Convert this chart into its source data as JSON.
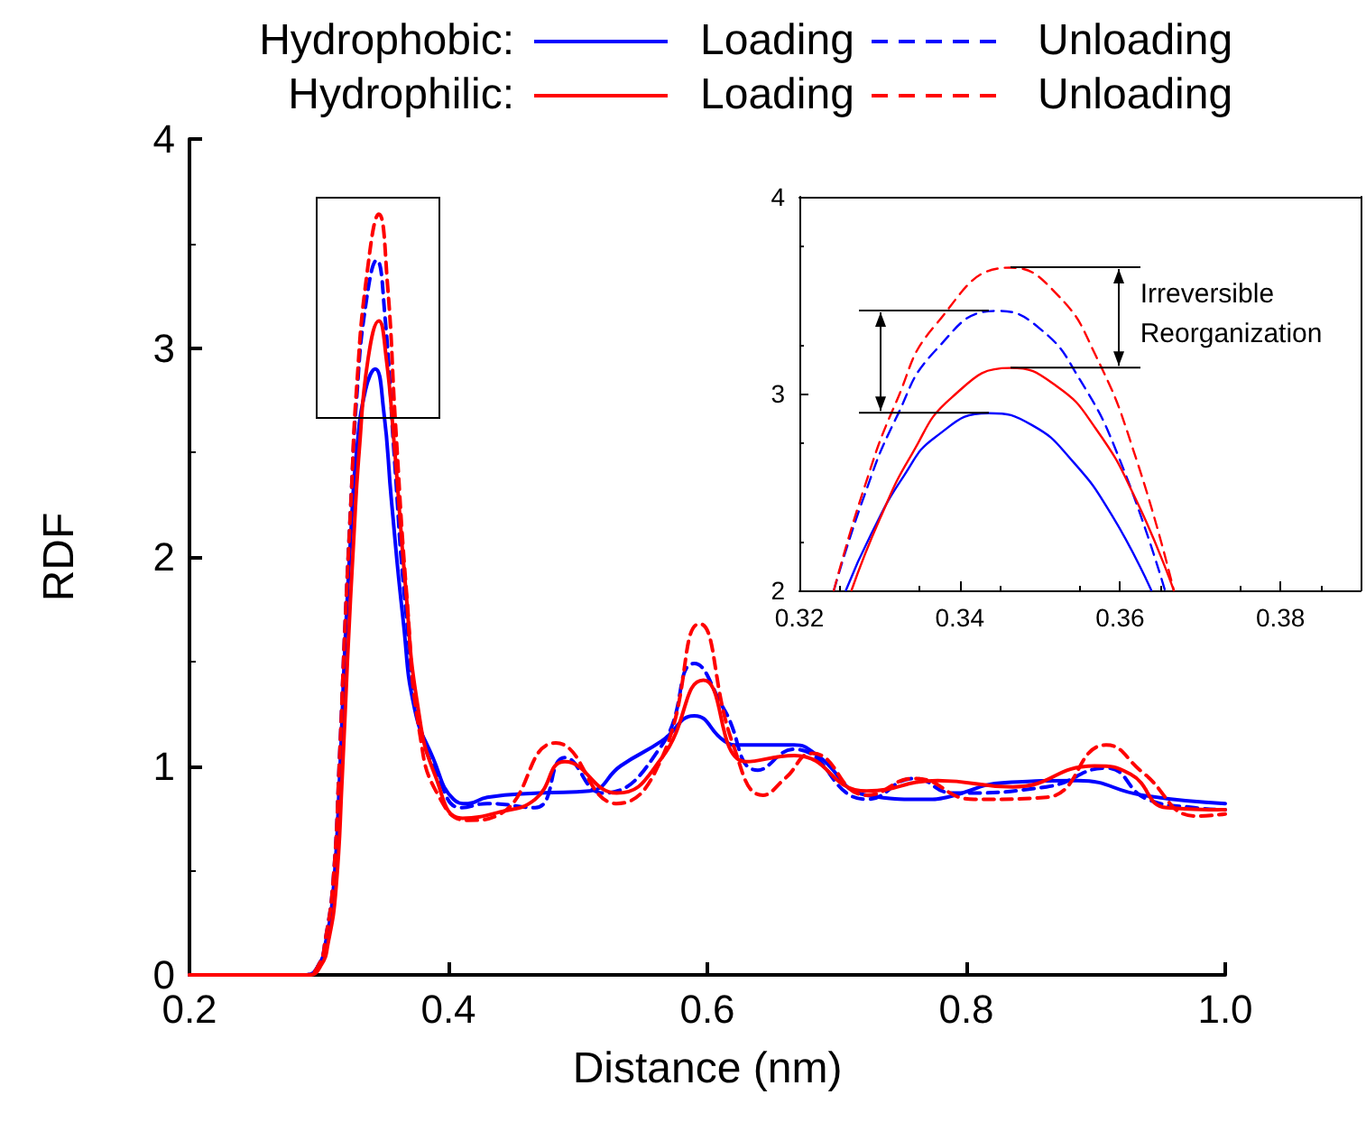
{
  "chart_data": [
    {
      "type": "line",
      "xlabel": "Distance (nm)",
      "ylabel": "RDF",
      "annotations": [
        "Hydrophobic:",
        "Hydrophilic:"
      ],
      "xlim": [
        0.2,
        1.0
      ],
      "xticks": [
        0.2,
        0.4,
        0.6,
        0.8,
        {
          "value": 1.0,
          "label": "1.0"
        }
      ],
      "ylim": [
        0,
        4
      ],
      "yticks": [
        0,
        1,
        2,
        3,
        4
      ],
      "grid": false,
      "legend": "top",
      "marker": "none",
      "series": [
        {
          "name": "Loading",
          "color": "#0000ff",
          "line_style": "solid",
          "x": [
            0.2,
            0.29,
            0.3,
            0.305,
            0.311,
            0.316,
            0.32,
            0.325,
            0.329,
            0.336,
            0.3435,
            0.35,
            0.356,
            0.365,
            0.374,
            0.388,
            0.404,
            0.415,
            0.43,
            0.47,
            0.509,
            0.533,
            0.565,
            0.59,
            0.613,
            0.624,
            0.667,
            0.685,
            0.723,
            0.769,
            0.785,
            0.83,
            0.886,
            0.936,
            1.0
          ],
          "values": [
            0,
            0,
            0.05,
            0.15,
            0.4,
            0.95,
            1.56,
            2.15,
            2.5,
            2.8,
            2.9,
            2.7,
            2.27,
            1.7,
            1.27,
            1.04,
            0.84,
            0.82,
            0.85,
            0.87,
            0.88,
            1.0,
            1.12,
            1.24,
            1.12,
            1.1,
            1.1,
            1.05,
            0.86,
            0.84,
            0.85,
            0.92,
            0.93,
            0.86,
            0.82
          ]
        },
        {
          "name": "Unloading",
          "color": "#0000ff",
          "line_style": "dashed",
          "x": [
            0.2,
            0.29,
            0.3,
            0.305,
            0.311,
            0.316,
            0.32,
            0.325,
            0.329,
            0.336,
            0.3446,
            0.351,
            0.358,
            0.367,
            0.378,
            0.392,
            0.41,
            0.43,
            0.467,
            0.49,
            0.519,
            0.565,
            0.59,
            0.613,
            0.639,
            0.667,
            0.723,
            0.76,
            0.79,
            0.862,
            0.908,
            0.94,
            0.976,
            1.0
          ],
          "values": [
            0,
            0,
            0.05,
            0.17,
            0.45,
            1.05,
            1.65,
            2.3,
            2.75,
            3.2,
            3.42,
            3.15,
            2.5,
            1.75,
            1.2,
            0.95,
            0.8,
            0.82,
            0.8,
            1.04,
            0.87,
            1.1,
            1.49,
            1.27,
            0.98,
            1.08,
            0.84,
            0.94,
            0.87,
            0.9,
            0.99,
            0.84,
            0.8,
            0.79
          ]
        },
        {
          "name": "Loading",
          "color": "#ff0000",
          "line_style": "solid",
          "x": [
            0.2,
            0.292,
            0.302,
            0.307,
            0.313,
            0.318,
            0.322,
            0.327,
            0.331,
            0.338,
            0.3463,
            0.352,
            0.358,
            0.367,
            0.376,
            0.39,
            0.411,
            0.44,
            0.467,
            0.49,
            0.53,
            0.565,
            0.597,
            0.63,
            0.667,
            0.723,
            0.778,
            0.836,
            0.899,
            0.927,
            0.955,
            1.0
          ],
          "values": [
            0,
            0,
            0.05,
            0.15,
            0.4,
            0.95,
            1.5,
            2.1,
            2.5,
            2.95,
            3.13,
            2.95,
            2.55,
            1.85,
            1.3,
            0.95,
            0.75,
            0.78,
            0.84,
            1.02,
            0.87,
            1.04,
            1.41,
            1.02,
            1.05,
            0.88,
            0.93,
            0.9,
            1.0,
            0.96,
            0.8,
            0.79
          ]
        },
        {
          "name": "Unloading",
          "color": "#ff0000",
          "line_style": "dashed",
          "x": [
            0.2,
            0.29,
            0.3,
            0.305,
            0.311,
            0.316,
            0.32,
            0.325,
            0.329,
            0.337,
            0.3463,
            0.353,
            0.359,
            0.368,
            0.378,
            0.393,
            0.415,
            0.44,
            0.483,
            0.53,
            0.565,
            0.594,
            0.62,
            0.643,
            0.66,
            0.681,
            0.723,
            0.76,
            0.806,
            0.862,
            0.908,
            0.936,
            0.978,
            1.0
          ],
          "values": [
            0,
            0,
            0.05,
            0.17,
            0.45,
            1.05,
            1.65,
            2.3,
            2.8,
            3.35,
            3.64,
            3.3,
            2.65,
            1.8,
            1.15,
            0.85,
            0.74,
            0.77,
            1.11,
            0.82,
            1.04,
            1.68,
            1.1,
            0.86,
            0.94,
            1.06,
            0.86,
            0.94,
            0.84,
            0.85,
            1.1,
            0.97,
            0.76,
            0.77
          ]
        }
      ]
    },
    {
      "type": "line",
      "annotations": [
        {
          "text": "Irreversible Reorganization",
          "x": 0.3463,
          "y": 3.64
        }
      ],
      "xlim": [
        0.32,
        0.39
      ],
      "xticks": [
        0.32,
        0.34,
        0.36,
        0.38
      ],
      "ylim": [
        2,
        4
      ],
      "yticks": [
        2,
        3,
        4
      ],
      "grid": false,
      "marker": "none",
      "series": [
        {
          "color": "#0000ff",
          "line_style": "solid",
          "x": [
            0.3258,
            0.329,
            0.333,
            0.337,
            0.3436,
            0.349,
            0.354,
            0.359,
            0.3639
          ],
          "values": [
            2,
            2.29,
            2.58,
            2.78,
            2.9,
            2.84,
            2.66,
            2.38,
            2
          ]
        },
        {
          "color": "#0000ff",
          "line_style": "dashed",
          "x": [
            0.3243,
            0.328,
            0.332,
            0.337,
            0.3446,
            0.35,
            0.355,
            0.36,
            0.3656
          ],
          "values": [
            2,
            2.47,
            2.87,
            3.22,
            3.42,
            3.33,
            3.07,
            2.66,
            2
          ]
        },
        {
          "color": "#ff0000",
          "line_style": "solid",
          "x": [
            0.3265,
            0.33,
            0.334,
            0.339,
            0.3463,
            0.352,
            0.357,
            0.362,
            0.3667
          ],
          "values": [
            2,
            2.36,
            2.69,
            2.98,
            3.13,
            3.04,
            2.82,
            2.46,
            2
          ]
        },
        {
          "color": "#ff0000",
          "line_style": "dashed",
          "x": [
            0.3243,
            0.328,
            0.332,
            0.337,
            0.3463,
            0.352,
            0.357,
            0.362,
            0.3667
          ],
          "values": [
            2,
            2.51,
            2.95,
            3.35,
            3.64,
            3.51,
            3.19,
            2.67,
            2
          ]
        }
      ]
    }
  ]
}
